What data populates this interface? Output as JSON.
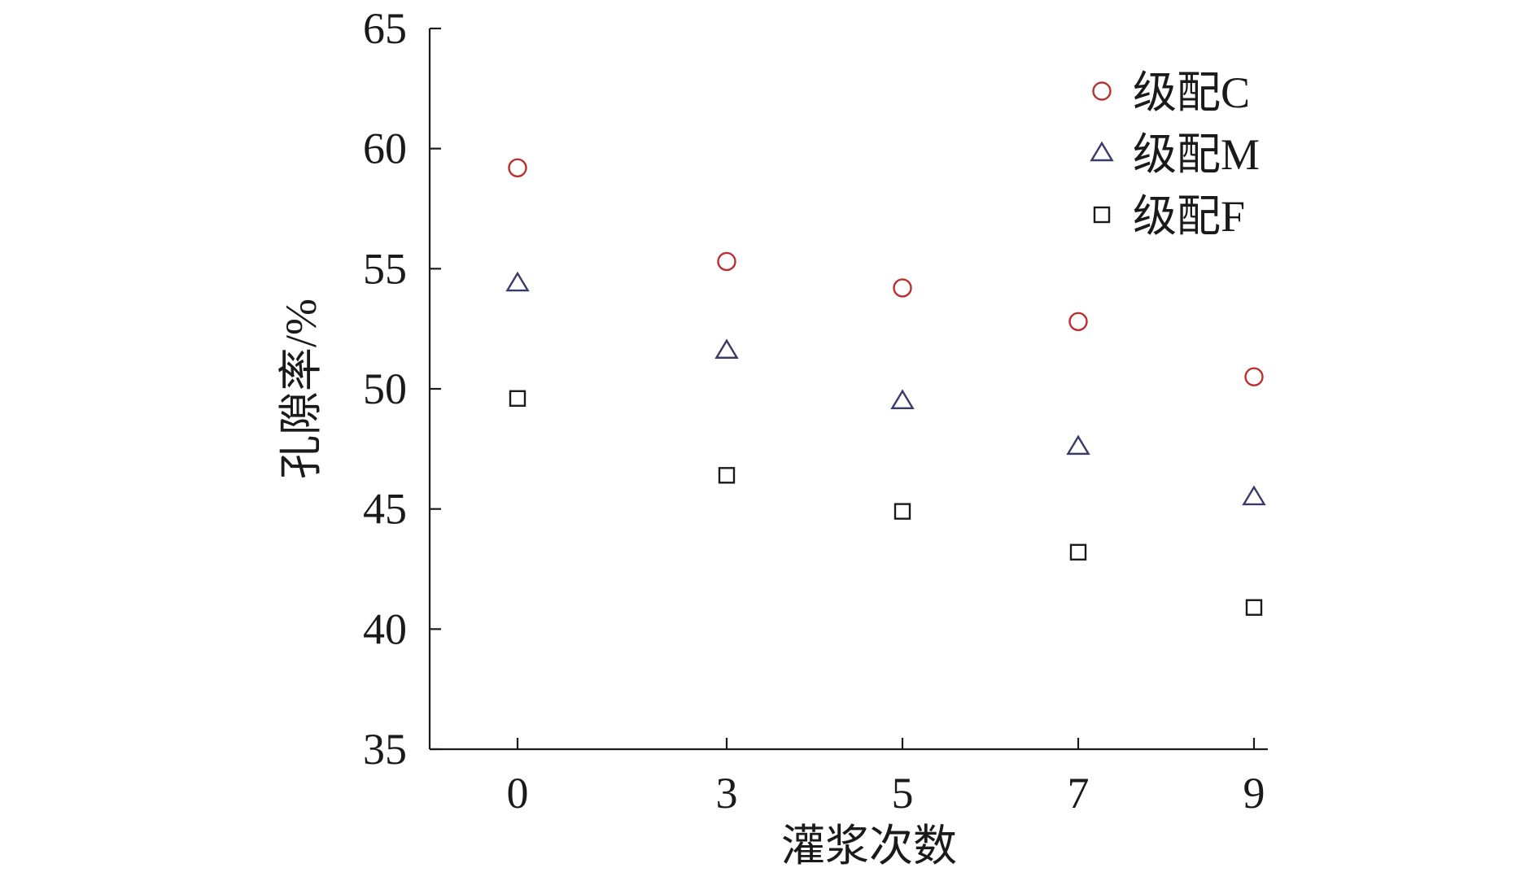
{
  "chart_data": {
    "type": "scatter",
    "title": "",
    "xlabel": "灌浆次数",
    "ylabel": "孔隙率/%",
    "categories": [
      "0",
      "3",
      "5",
      "7",
      "9"
    ],
    "x": [
      0,
      3,
      5,
      7,
      9
    ],
    "ylim": [
      35,
      65
    ],
    "yticks": [
      35,
      40,
      45,
      50,
      55,
      60,
      65
    ],
    "yticks_labels": [
      "35",
      "40",
      "45",
      "50",
      "55",
      "60",
      "65"
    ],
    "grid": false,
    "legend_position": "top-right",
    "series": [
      {
        "name": "级配C",
        "marker": "circle",
        "color": "#b8312f",
        "values": [
          59.2,
          55.3,
          54.2,
          52.8,
          50.5
        ]
      },
      {
        "name": "级配M",
        "marker": "triangle",
        "color": "#3a3a6a",
        "values": [
          54.4,
          51.6,
          49.5,
          47.6,
          45.5
        ]
      },
      {
        "name": "级配F",
        "marker": "square",
        "color": "#1a1a1a",
        "values": [
          49.6,
          46.4,
          44.9,
          43.2,
          40.9
        ]
      }
    ]
  }
}
